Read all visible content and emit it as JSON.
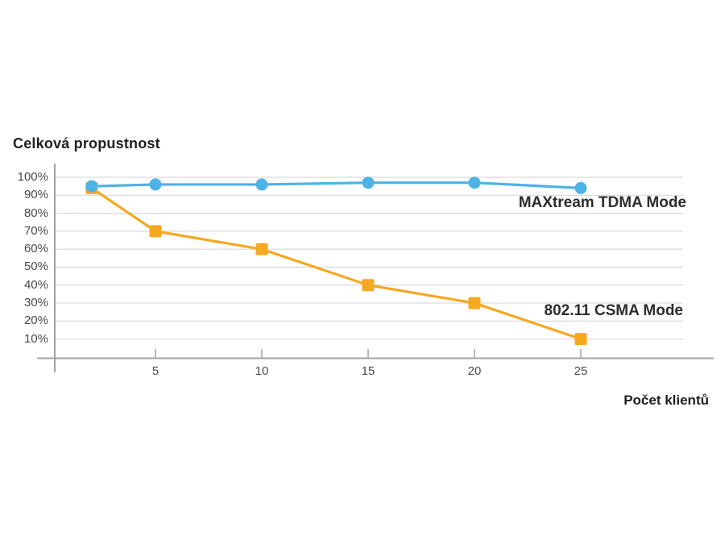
{
  "chart": {
    "title": "Celková propustnost",
    "x_axis_label": "Počet klientů",
    "series_labels": {
      "tdma": "MAXtream TDMA Mode",
      "csma": "802.11 CSMA Mode"
    },
    "colors": {
      "tdma_line": "#4db3e6",
      "csma_line": "#f6a821",
      "gridline": "#d9d9d9",
      "axis": "#a3a3a3",
      "tick_text": "#4a4a4a"
    }
  },
  "chart_data": {
    "type": "line",
    "title": "Celková propustnost",
    "xlabel": "Počet klientů",
    "ylabel": "",
    "x": [
      2,
      5,
      10,
      15,
      20,
      25
    ],
    "series": [
      {
        "name": "MAXtream TDMA Mode",
        "color": "#4db3e6",
        "marker": "circle",
        "values": [
          95,
          96,
          96,
          97,
          97,
          94
        ]
      },
      {
        "name": "802.11 CSMA Mode",
        "color": "#f6a821",
        "marker": "square",
        "values": [
          94,
          70,
          60,
          40,
          30,
          10
        ]
      }
    ],
    "xticks": [
      {
        "value": 5,
        "label": "5"
      },
      {
        "value": 10,
        "label": "10"
      },
      {
        "value": 15,
        "label": "15"
      },
      {
        "value": 20,
        "label": "20"
      },
      {
        "value": 25,
        "label": "25"
      }
    ],
    "yticks": [
      {
        "value": 100,
        "label": "100%"
      },
      {
        "value": 90,
        "label": "90%"
      },
      {
        "value": 80,
        "label": "80%"
      },
      {
        "value": 70,
        "label": "70%"
      },
      {
        "value": 60,
        "label": "60%"
      },
      {
        "value": 50,
        "label": "50%"
      },
      {
        "value": 40,
        "label": "40%"
      },
      {
        "value": 30,
        "label": "30%"
      },
      {
        "value": 20,
        "label": "20%"
      },
      {
        "value": 10,
        "label": "10%"
      }
    ],
    "xlim": [
      0,
      31
    ],
    "ylim": [
      0,
      100
    ],
    "grid": "horizontal",
    "legend_position": "inline-right"
  }
}
